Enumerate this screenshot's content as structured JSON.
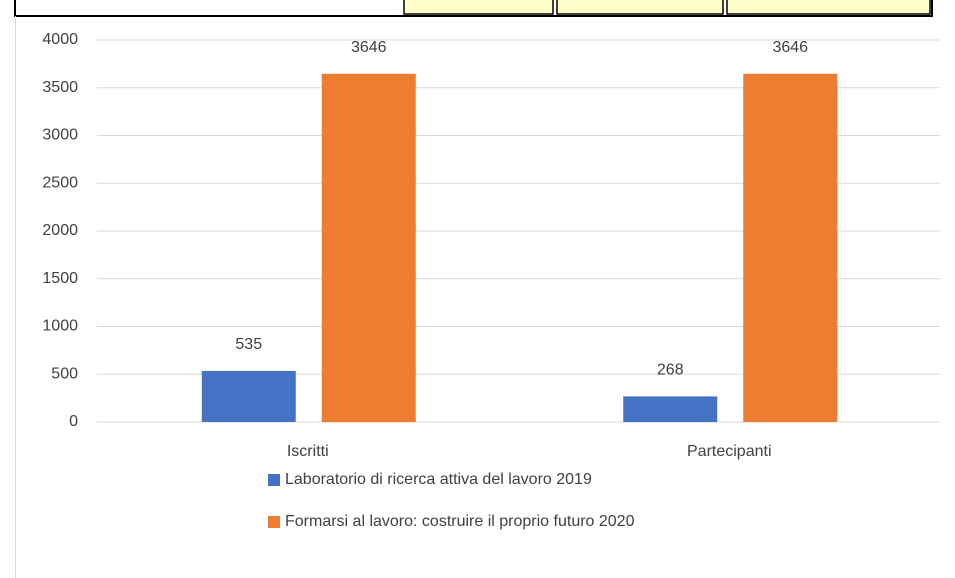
{
  "chart_data": {
    "type": "bar",
    "categories": [
      "Iscritti",
      "Partecipanti"
    ],
    "series": [
      {
        "name": "Laboratorio di ricerca attiva del lavoro 2019",
        "color": "#4472c4",
        "values": [
          535,
          268
        ]
      },
      {
        "name": "Formarsi al lavoro: costruire il proprio futuro 2020",
        "color": "#ed7d31",
        "values": [
          3646,
          3646
        ]
      }
    ],
    "ylim": [
      0,
      4000
    ],
    "yticks": [
      0,
      500,
      1000,
      1500,
      2000,
      2500,
      3000,
      3500,
      4000
    ],
    "grid": true,
    "legend": "bottom"
  }
}
